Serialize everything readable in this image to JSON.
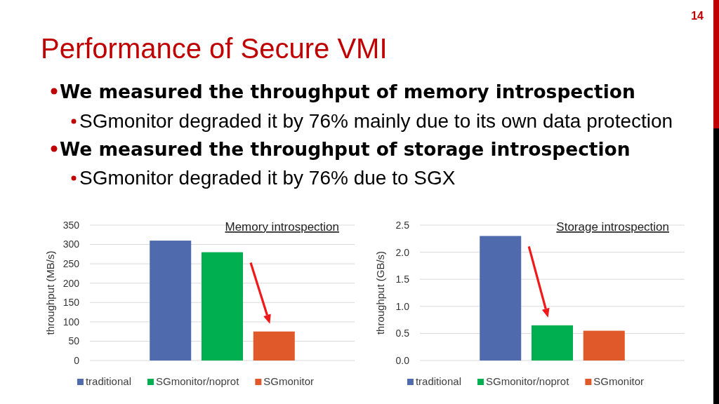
{
  "chart_data": [
    {
      "type": "other",
      "title": "Performance of Secure VMI",
      "annotations": [
        "We measured the throughput of memory introspection",
        "SGmonitor degraded it by 76% mainly due to its own data protection",
        "We measured the throughput of storage introspection",
        "SGmonitor degraded it by 76% due to SGX",
        "14"
      ]
    },
    {
      "type": "bar",
      "title": "Memory introspection",
      "ylabel": "throughput (MB/s)",
      "categories": [
        null
      ],
      "series": [
        {
          "name": "traditional",
          "color": "#4f6bad",
          "values": [
            310
          ]
        },
        {
          "name": "SGmonitor/noprot",
          "color": "#00b050",
          "values": [
            280
          ]
        },
        {
          "name": "SGmonitor",
          "color": "#e0592a",
          "values": [
            75
          ]
        }
      ],
      "ylim": [
        0,
        350
      ],
      "yticks": [
        0,
        50,
        100,
        150,
        200,
        250,
        300,
        350
      ],
      "grid": "y",
      "legend": "bottom"
    },
    {
      "type": "bar",
      "title": "Storage introspection",
      "ylabel": "throughput (GB/s)",
      "categories": [
        null
      ],
      "series": [
        {
          "name": "traditional",
          "color": "#4f6bad",
          "values": [
            2.3
          ]
        },
        {
          "name": "SGmonitor/noprot",
          "color": "#00b050",
          "values": [
            0.65
          ]
        },
        {
          "name": "SGmonitor",
          "color": "#e0592a",
          "values": [
            0.55
          ]
        }
      ],
      "ylim": [
        0,
        2.5
      ],
      "yticks": [
        {
          "value": 0,
          "label": "0.0"
        },
        {
          "value": 0.5,
          "label": "0.5"
        },
        {
          "value": 1,
          "label": "1.0"
        },
        {
          "value": 1.5,
          "label": "1.5"
        },
        {
          "value": 2,
          "label": "2.0"
        },
        {
          "value": 2.5,
          "label": "2.5"
        }
      ],
      "grid": "y",
      "legend": "bottom"
    }
  ]
}
